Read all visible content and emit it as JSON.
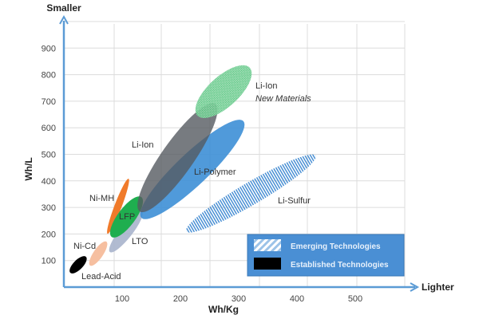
{
  "chart_data": {
    "type": "scatter",
    "title": "",
    "xlabel": "Wh/Kg",
    "ylabel": "Wh/L",
    "x_arrow_label": "Lighter",
    "y_arrow_label": "Smaller",
    "xlim": [
      0,
      600
    ],
    "ylim": [
      0,
      1000
    ],
    "x_ticks": [
      "100",
      "200",
      "300",
      "400",
      "500"
    ],
    "y_ticks": [
      "100",
      "200",
      "300",
      "400",
      "500",
      "600",
      "700",
      "800",
      "900"
    ],
    "grid": true,
    "legend_position": "bottom-right",
    "legend": [
      {
        "label": "Emerging Technologies",
        "style": "hatched"
      },
      {
        "label": "Established Technologies",
        "style": "solid"
      }
    ],
    "legend_color": "#4a8fd4",
    "axis_color": "#5b9bd5",
    "regions": [
      {
        "label": "Lead-Acid",
        "category": "Established",
        "color": "#000000",
        "low": [
          11,
          54
        ],
        "high": [
          38,
          114
        ]
      },
      {
        "label": "Ni-Cd",
        "category": "Established",
        "color": "#f6bfa0",
        "low": [
          45,
          81
        ],
        "high": [
          73,
          171
        ]
      },
      {
        "label": "LTO",
        "category": "Established",
        "color": "#a9b4cc",
        "low": [
          79,
          132
        ],
        "high": [
          134,
          285
        ]
      },
      {
        "label": "Ni-MH",
        "category": "Established",
        "color": "#f07a2a",
        "low": [
          75,
          201
        ],
        "high": [
          111,
          408
        ]
      },
      {
        "label": "LFP",
        "category": "Established",
        "color": "#1fae4f",
        "low": [
          82,
          189
        ],
        "high": [
          133,
          339
        ]
      },
      {
        "label": "Li-Polymer",
        "category": "Established",
        "color": "#3d8fd6",
        "low": [
          133,
          261
        ],
        "high": [
          308,
          625
        ]
      },
      {
        "label": "Li-Ion",
        "category": "Established",
        "color": "#555a60",
        "low": [
          130,
          285
        ],
        "high": [
          260,
          690
        ]
      },
      {
        "label": "Li-Ion",
        "sublabel": "New Materials",
        "category": "Emerging",
        "color": "#3dbb6e",
        "low": [
          229,
          646
        ],
        "high": [
          319,
          826
        ]
      },
      {
        "label": "Li-Sulfur",
        "category": "Emerging",
        "color": "#4a90d4",
        "low": [
          210,
          210
        ],
        "high": [
          432,
          495
        ]
      }
    ]
  }
}
